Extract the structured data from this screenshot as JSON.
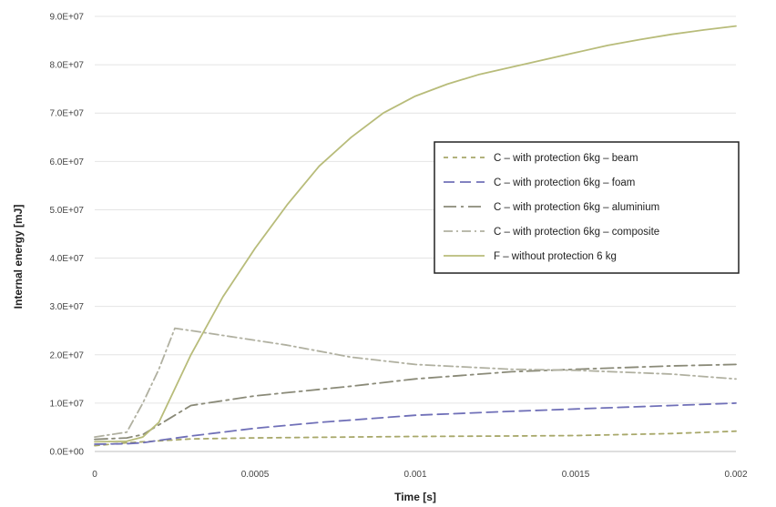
{
  "chart_data": {
    "type": "line",
    "xlabel": "Time [s]",
    "ylabel": "Internal energy [mJ]",
    "xlim": [
      0,
      0.002
    ],
    "ylim": [
      0,
      90000000
    ],
    "x_ticks": [
      {
        "value": 0,
        "label": "0"
      },
      {
        "value": 0.0005,
        "label": "0.0005"
      },
      {
        "value": 0.001,
        "label": "0.001"
      },
      {
        "value": 0.0015,
        "label": "0.0015"
      },
      {
        "value": 0.002,
        "label": "0.002"
      }
    ],
    "y_ticks": [
      {
        "value": 0,
        "label": "0.0E+00"
      },
      {
        "value": 10000000,
        "label": "1.0E+07"
      },
      {
        "value": 20000000,
        "label": "2.0E+07"
      },
      {
        "value": 30000000,
        "label": "3.0E+07"
      },
      {
        "value": 40000000,
        "label": "4.0E+07"
      },
      {
        "value": 50000000,
        "label": "5.0E+07"
      },
      {
        "value": 60000000,
        "label": "6.0E+07"
      },
      {
        "value": 70000000,
        "label": "7.0E+07"
      },
      {
        "value": 80000000,
        "label": "8.0E+07"
      },
      {
        "value": 90000000,
        "label": "9.0E+07"
      }
    ],
    "grid": "horizontal",
    "legend_position": "right",
    "series": [
      {
        "name": "C – with protection 6kg – beam",
        "color": "#a8a86a",
        "dash": "5,5",
        "x": [
          0,
          0.0001,
          0.00015,
          0.0002,
          0.00025,
          0.0003,
          0.0005,
          0.0008,
          0.001,
          0.0013,
          0.0015,
          0.0018,
          0.002
        ],
        "y": [
          1200000,
          1800000,
          2000000,
          2200000,
          2400000,
          2600000,
          2800000,
          3000000,
          3100000,
          3200000,
          3300000,
          3700000,
          4200000
        ]
      },
      {
        "name": "C – with protection 6kg – foam",
        "color": "#7070b8",
        "dash": "12,6",
        "x": [
          0,
          0.0001,
          0.00015,
          0.0002,
          0.0003,
          0.0005,
          0.0007,
          0.001,
          0.0013,
          0.0015,
          0.0018,
          0.002
        ],
        "y": [
          1500000,
          1600000,
          1800000,
          2300000,
          3200000,
          4800000,
          6000000,
          7500000,
          8300000,
          8800000,
          9500000,
          10000000
        ]
      },
      {
        "name": "C – with protection 6kg – aluminium",
        "color": "#8a8a78",
        "dash": "14,5,3,5",
        "x": [
          0,
          0.0001,
          0.00015,
          0.0002,
          0.0003,
          0.0005,
          0.0008,
          0.001,
          0.0013,
          0.0015,
          0.0018,
          0.002
        ],
        "y": [
          2500000,
          2800000,
          3500000,
          5500000,
          9500000,
          11500000,
          13500000,
          15000000,
          16500000,
          17000000,
          17700000,
          18000000
        ]
      },
      {
        "name": "C – with protection 6kg – composite",
        "color": "#b0b0a0",
        "dash": "10,4,2,4",
        "x": [
          0,
          0.0001,
          0.00015,
          0.0002,
          0.00025,
          0.0003,
          0.0004,
          0.0006,
          0.0008,
          0.001,
          0.0013,
          0.0015,
          0.0018,
          0.002
        ],
        "y": [
          3000000,
          4000000,
          10000000,
          17000000,
          25500000,
          25000000,
          24000000,
          22000000,
          19500000,
          18000000,
          17000000,
          16800000,
          16000000,
          15000000
        ]
      },
      {
        "name": "F – without protection 6 kg",
        "color": "#b8bc7a",
        "dash": "",
        "x": [
          0,
          0.0001,
          0.00015,
          0.0002,
          0.00025,
          0.0003,
          0.0004,
          0.0005,
          0.0006,
          0.0007,
          0.0008,
          0.0009,
          0.001,
          0.0011,
          0.0012,
          0.0013,
          0.0014,
          0.0015,
          0.0016,
          0.0017,
          0.0018,
          0.0019,
          0.002
        ],
        "y": [
          2000000,
          2100000,
          3000000,
          6000000,
          13000000,
          20000000,
          32000000,
          42000000,
          51000000,
          59000000,
          65000000,
          70000000,
          73500000,
          76000000,
          78000000,
          79500000,
          81000000,
          82500000,
          84000000,
          85200000,
          86300000,
          87200000,
          88000000
        ]
      }
    ]
  }
}
